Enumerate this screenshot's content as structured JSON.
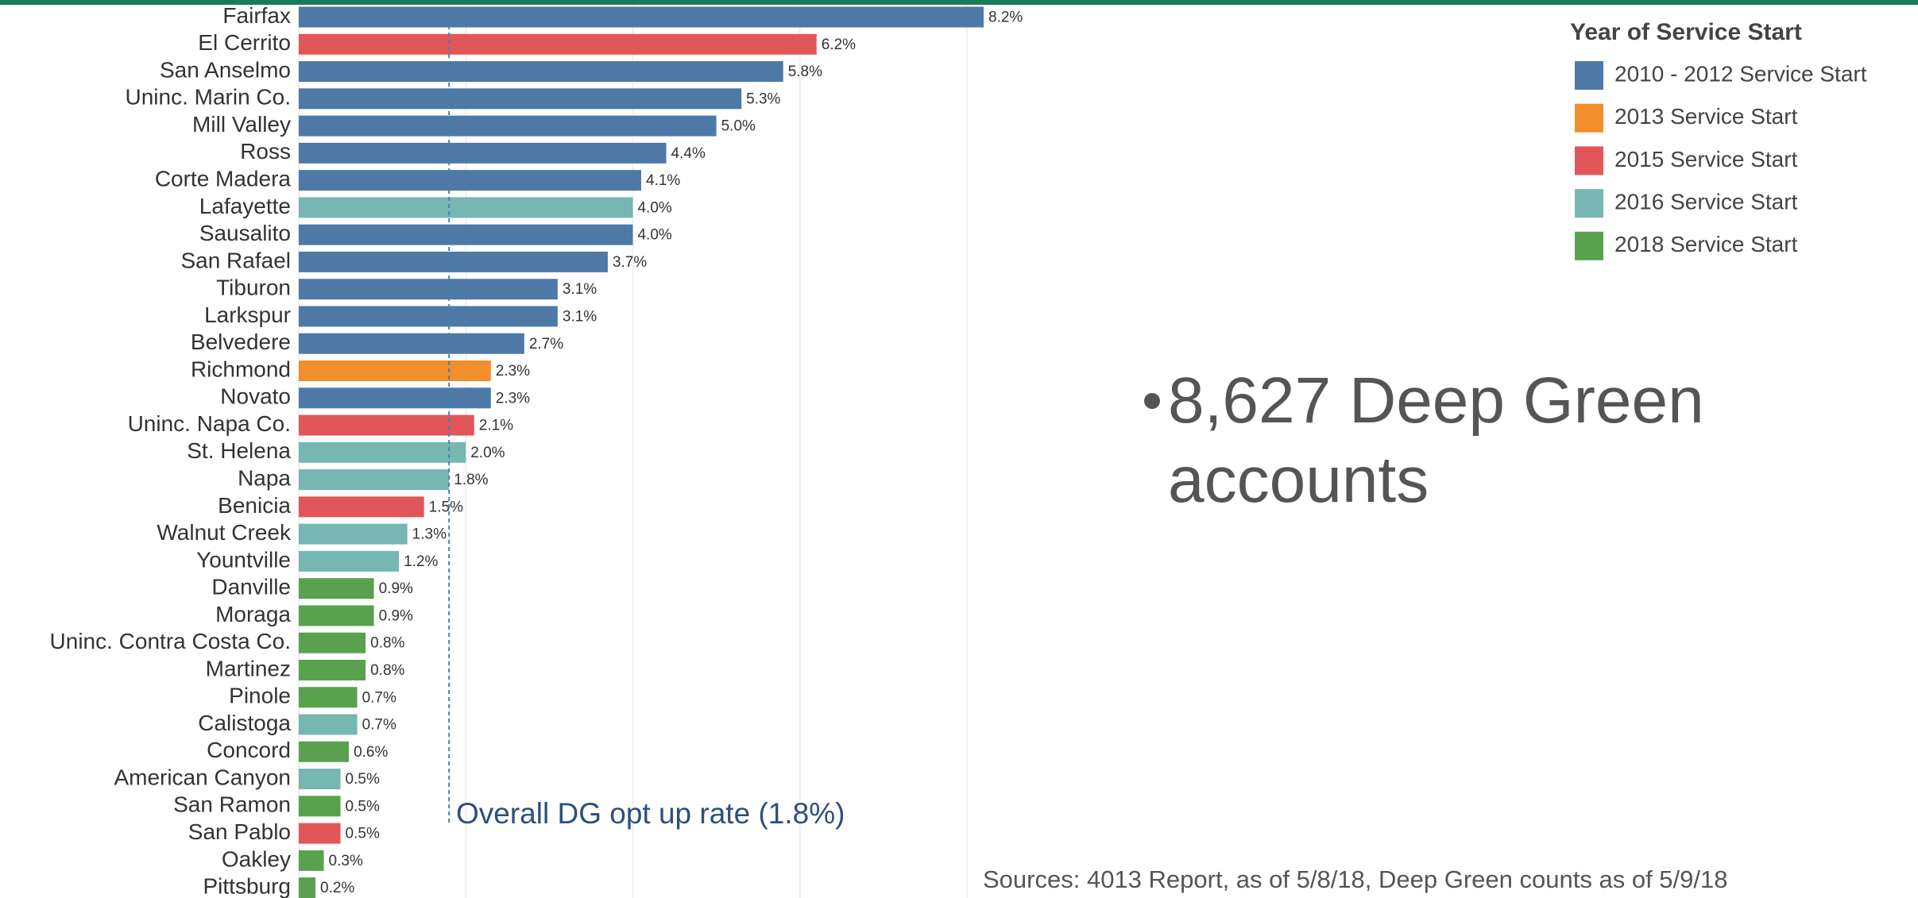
{
  "chart_data": {
    "type": "bar",
    "orientation": "horizontal",
    "categories": [
      "Fairfax",
      "El Cerrito",
      "San Anselmo",
      "Uninc. Marin Co.",
      "Mill Valley",
      "Ross",
      "Corte Madera",
      "Lafayette",
      "Sausalito",
      "San Rafael",
      "Tiburon",
      "Larkspur",
      "Belvedere",
      "Richmond",
      "Novato",
      "Uninc. Napa Co.",
      "St. Helena",
      "Napa",
      "Benicia",
      "Walnut Creek",
      "Yountville",
      "Danville",
      "Moraga",
      "Uninc. Contra Costa Co.",
      "Martinez",
      "Pinole",
      "Calistoga",
      "Concord",
      "American Canyon",
      "San Ramon",
      "San Pablo",
      "Oakley",
      "Pittsburg"
    ],
    "series": [
      {
        "name": "2010 - 2012 Service Start",
        "color": "#4e79a7",
        "values": [
          8.2,
          null,
          5.8,
          5.3,
          5.0,
          4.4,
          4.1,
          null,
          4.0,
          3.7,
          3.1,
          3.1,
          2.7,
          null,
          2.3,
          null,
          null,
          null,
          null,
          null,
          null,
          null,
          null,
          null,
          null,
          null,
          null,
          null,
          null,
          null,
          null,
          null,
          null
        ],
        "value_labels": [
          "8.2%",
          null,
          "5.8%",
          "5.3%",
          "5.0%",
          "4.4%",
          "4.1%",
          null,
          "4.0%",
          "3.7%",
          "3.1%",
          "3.1%",
          "2.7%",
          null,
          "2.3%",
          null,
          null,
          null,
          null,
          null,
          null,
          null,
          null,
          null,
          null,
          null,
          null,
          null,
          null,
          null,
          null,
          null,
          null
        ]
      },
      {
        "name": "2013 Service Start",
        "color": "#f28e2b",
        "values": [
          null,
          null,
          null,
          null,
          null,
          null,
          null,
          null,
          null,
          null,
          null,
          null,
          null,
          2.3,
          null,
          null,
          null,
          null,
          null,
          null,
          null,
          null,
          null,
          null,
          null,
          null,
          null,
          null,
          null,
          null,
          null,
          null,
          null
        ],
        "value_labels": [
          null,
          null,
          null,
          null,
          null,
          null,
          null,
          null,
          null,
          null,
          null,
          null,
          null,
          "2.3%",
          null,
          null,
          null,
          null,
          null,
          null,
          null,
          null,
          null,
          null,
          null,
          null,
          null,
          null,
          null,
          null,
          null,
          null,
          null
        ]
      },
      {
        "name": "2015 Service Start",
        "color": "#e15759",
        "values": [
          null,
          6.2,
          null,
          null,
          null,
          null,
          null,
          null,
          null,
          null,
          null,
          null,
          null,
          null,
          null,
          2.1,
          null,
          null,
          1.5,
          null,
          null,
          null,
          null,
          null,
          null,
          null,
          null,
          null,
          null,
          null,
          0.5,
          null,
          null
        ],
        "value_labels": [
          null,
          "6.2%",
          null,
          null,
          null,
          null,
          null,
          null,
          null,
          null,
          null,
          null,
          null,
          null,
          null,
          "2.1%",
          null,
          null,
          "1.5%",
          null,
          null,
          null,
          null,
          null,
          null,
          null,
          null,
          null,
          null,
          null,
          "0.5%",
          null,
          null
        ]
      },
      {
        "name": "2016 Service Start",
        "color": "#76b7b2",
        "values": [
          null,
          null,
          null,
          null,
          null,
          null,
          null,
          4.0,
          null,
          null,
          null,
          null,
          null,
          null,
          null,
          null,
          2.0,
          1.8,
          null,
          1.3,
          1.2,
          null,
          null,
          null,
          null,
          null,
          0.7,
          null,
          0.5,
          null,
          null,
          null,
          null
        ],
        "value_labels": [
          null,
          null,
          null,
          null,
          null,
          null,
          null,
          "4.0%",
          null,
          null,
          null,
          null,
          null,
          null,
          null,
          null,
          "2.0%",
          "1.8%",
          null,
          "1.3%",
          "1.2%",
          null,
          null,
          null,
          null,
          null,
          "0.7%",
          null,
          "0.5%",
          null,
          null,
          null,
          null
        ]
      },
      {
        "name": "2018 Service Start",
        "color": "#59a14f",
        "values": [
          null,
          null,
          null,
          null,
          null,
          null,
          null,
          null,
          null,
          null,
          null,
          null,
          null,
          null,
          null,
          null,
          null,
          null,
          null,
          null,
          null,
          0.9,
          0.9,
          0.8,
          0.8,
          0.7,
          null,
          0.6,
          null,
          0.5,
          null,
          0.3,
          0.2
        ],
        "value_labels": [
          null,
          null,
          null,
          null,
          null,
          null,
          null,
          null,
          null,
          null,
          null,
          null,
          null,
          null,
          null,
          null,
          null,
          null,
          null,
          null,
          null,
          "0.9%",
          "0.9%",
          "0.8%",
          "0.8%",
          "0.7%",
          null,
          "0.6%",
          null,
          "0.5%",
          null,
          "0.3%",
          "0.2%"
        ]
      }
    ],
    "xlim": [
      0,
      8.8
    ],
    "xticks": [
      0,
      2,
      4,
      6,
      8
    ],
    "grid": true,
    "legend_title": "Year of Service Start",
    "legend_position": "top-right",
    "reference_line": {
      "value": 1.8,
      "label": "Overall DG opt up rate (1.8%)"
    }
  },
  "bullet": "8,627 Deep Green accounts",
  "sources": "Sources: 4013 Report, as of 5/8/18, Deep Green counts as of 5/9/18"
}
